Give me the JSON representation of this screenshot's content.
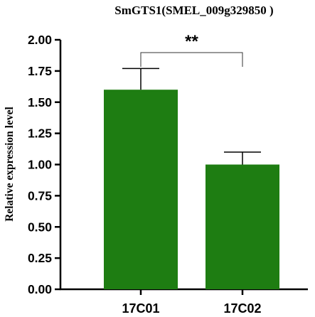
{
  "chart_data": {
    "type": "bar",
    "title": "SmGTS1(SMEL_009g329850 )",
    "xlabel": "",
    "ylabel": "Relative expression level",
    "categories": [
      "17C01",
      "17C02"
    ],
    "values": [
      1.6,
      1.0
    ],
    "errors": [
      0.17,
      0.1
    ],
    "ylim": [
      0,
      2.0
    ],
    "yticks": [
      "0.00",
      "0.25",
      "0.50",
      "0.75",
      "1.00",
      "1.25",
      "1.50",
      "1.75",
      "2.00"
    ],
    "bar_color": "#1e7d12",
    "significance": {
      "label": "**",
      "between": [
        "17C01",
        "17C02"
      ]
    },
    "grid": false,
    "legend": "none"
  }
}
